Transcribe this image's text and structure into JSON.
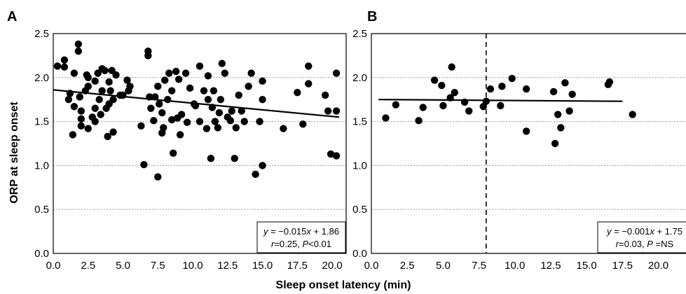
{
  "figure": {
    "ylabel": "ORP at sleep onset",
    "xlabel": "Sleep onset latency (min)"
  },
  "chart_data": [
    {
      "panel": "A",
      "type": "scatter",
      "xlim": [
        0,
        21
      ],
      "ylim": [
        0,
        2.5
      ],
      "xticks": [
        "0.0",
        "2.5",
        "5.0",
        "7.5",
        "10.0",
        "12.5",
        "15.0",
        "17.5",
        "20.0"
      ],
      "yticks": [
        "0.0",
        "0.5",
        "1.0",
        "1.5",
        "2.0",
        "2.5"
      ],
      "grid": "horizontal dotted",
      "marker_color": "#000000",
      "points": [
        [
          0.3,
          2.13
        ],
        [
          0.8,
          2.12
        ],
        [
          0.8,
          2.2
        ],
        [
          1.1,
          1.75
        ],
        [
          1.2,
          1.82
        ],
        [
          1.4,
          1.35
        ],
        [
          1.5,
          2.05
        ],
        [
          1.5,
          1.67
        ],
        [
          1.8,
          2.38
        ],
        [
          1.8,
          2.3
        ],
        [
          1.9,
          1.78
        ],
        [
          2.0,
          1.62
        ],
        [
          2.0,
          1.53
        ],
        [
          2.0,
          1.45
        ],
        [
          2.3,
          1.85
        ],
        [
          2.4,
          2.03
        ],
        [
          2.5,
          2.0
        ],
        [
          2.5,
          1.9
        ],
        [
          2.5,
          1.42
        ],
        [
          2.8,
          1.55
        ],
        [
          3.0,
          1.5
        ],
        [
          3.0,
          1.65
        ],
        [
          3.0,
          1.96
        ],
        [
          3.2,
          2.05
        ],
        [
          3.3,
          1.75
        ],
        [
          3.4,
          1.58
        ],
        [
          3.5,
          2.1
        ],
        [
          3.5,
          1.85
        ],
        [
          3.7,
          2.08
        ],
        [
          3.8,
          1.65
        ],
        [
          3.9,
          1.33
        ],
        [
          4.0,
          1.7
        ],
        [
          4.0,
          1.95
        ],
        [
          4.1,
          1.85
        ],
        [
          4.2,
          2.08
        ],
        [
          4.3,
          1.75
        ],
        [
          4.3,
          1.38
        ],
        [
          4.5,
          2.03
        ],
        [
          4.8,
          1.8
        ],
        [
          5.0,
          1.8
        ],
        [
          5.3,
          1.97
        ],
        [
          5.4,
          1.85
        ],
        [
          5.5,
          1.9
        ],
        [
          6.3,
          1.45
        ],
        [
          6.5,
          1.01
        ],
        [
          6.8,
          2.3
        ],
        [
          6.8,
          2.25
        ],
        [
          6.9,
          1.78
        ],
        [
          7.0,
          1.65
        ],
        [
          7.2,
          1.51
        ],
        [
          7.3,
          1.78
        ],
        [
          7.5,
          0.87
        ],
        [
          7.5,
          1.9
        ],
        [
          7.6,
          1.7
        ],
        [
          7.8,
          1.6
        ],
        [
          7.8,
          1.37
        ],
        [
          7.9,
          1.43
        ],
        [
          8.0,
          1.97
        ],
        [
          8.2,
          1.75
        ],
        [
          8.3,
          2.05
        ],
        [
          8.5,
          1.85
        ],
        [
          8.5,
          1.52
        ],
        [
          8.6,
          1.14
        ],
        [
          8.8,
          2.07
        ],
        [
          8.9,
          1.54
        ],
        [
          9.0,
          1.98
        ],
        [
          9.1,
          1.35
        ],
        [
          9.2,
          1.58
        ],
        [
          9.5,
          2.05
        ],
        [
          9.6,
          1.49
        ],
        [
          9.8,
          1.88
        ],
        [
          10.1,
          1.7
        ],
        [
          10.2,
          1.68
        ],
        [
          10.5,
          1.5
        ],
        [
          10.5,
          2.13
        ],
        [
          10.8,
          1.85
        ],
        [
          11.0,
          1.42
        ],
        [
          11.1,
          2.02
        ],
        [
          11.1,
          1.75
        ],
        [
          11.3,
          1.08
        ],
        [
          11.4,
          1.66
        ],
        [
          11.5,
          1.85
        ],
        [
          11.6,
          1.5
        ],
        [
          11.8,
          1.43
        ],
        [
          11.9,
          1.6
        ],
        [
          12.0,
          1.75
        ],
        [
          12.1,
          2.16
        ],
        [
          12.3,
          2.05
        ],
        [
          12.5,
          1.55
        ],
        [
          12.7,
          1.51
        ],
        [
          12.8,
          1.62
        ],
        [
          13.0,
          1.08
        ],
        [
          13.1,
          1.43
        ],
        [
          13.3,
          1.8
        ],
        [
          13.5,
          1.62
        ],
        [
          13.7,
          1.5
        ],
        [
          14.0,
          1.9
        ],
        [
          14.2,
          2.05
        ],
        [
          14.5,
          0.9
        ],
        [
          14.8,
          1.5
        ],
        [
          15.0,
          1.0
        ],
        [
          15.0,
          1.75
        ],
        [
          15.0,
          1.96
        ],
        [
          16.5,
          1.42
        ],
        [
          17.5,
          1.83
        ],
        [
          17.9,
          1.47
        ],
        [
          18.3,
          1.93
        ],
        [
          18.3,
          2.13
        ],
        [
          19.5,
          1.8
        ],
        [
          19.7,
          1.62
        ],
        [
          19.9,
          1.13
        ],
        [
          20.3,
          2.05
        ],
        [
          20.3,
          1.11
        ],
        [
          20.3,
          1.62
        ]
      ],
      "fit_line": {
        "x": [
          0,
          20.5
        ],
        "y": [
          1.86,
          1.55
        ]
      },
      "annotation": {
        "line1": {
          "a": "y",
          "b": " = −0.015",
          "c": "x",
          "d": " + 1.86"
        },
        "line2": {
          "a": "r",
          "b": "=0.25, ",
          "c": "P",
          "d": "<0.01"
        }
      }
    },
    {
      "panel": "B",
      "type": "scatter",
      "xlim": [
        0,
        21
      ],
      "ylim": [
        0,
        2.5
      ],
      "xticks": [
        "0.0",
        "2.5",
        "5.0",
        "7.5",
        "10.0",
        "12.5",
        "15.0",
        "17.5",
        "20.0"
      ],
      "yticks": [
        "0.0",
        "0.5",
        "1.0",
        "1.5",
        "2.0",
        "2.5"
      ],
      "grid": "horizontal dotted",
      "marker_color": "#000000",
      "vline": 8.0,
      "points": [
        [
          1.0,
          1.54
        ],
        [
          1.7,
          1.69
        ],
        [
          3.3,
          1.51
        ],
        [
          3.6,
          1.66
        ],
        [
          4.4,
          1.97
        ],
        [
          4.9,
          1.91
        ],
        [
          5.0,
          1.68
        ],
        [
          5.5,
          1.77
        ],
        [
          5.6,
          2.12
        ],
        [
          5.8,
          1.83
        ],
        [
          6.5,
          1.72
        ],
        [
          6.8,
          1.62
        ],
        [
          7.8,
          1.67
        ],
        [
          8.0,
          1.73
        ],
        [
          8.3,
          1.87
        ],
        [
          9.0,
          1.68
        ],
        [
          9.1,
          1.9
        ],
        [
          9.8,
          1.99
        ],
        [
          10.8,
          1.87
        ],
        [
          10.8,
          1.39
        ],
        [
          12.7,
          1.84
        ],
        [
          12.8,
          1.25
        ],
        [
          13.0,
          1.58
        ],
        [
          13.2,
          1.43
        ],
        [
          13.5,
          1.94
        ],
        [
          13.8,
          1.62
        ],
        [
          14.0,
          1.81
        ],
        [
          16.5,
          1.92
        ],
        [
          16.6,
          1.95
        ],
        [
          18.2,
          1.58
        ]
      ],
      "fit_line": {
        "x": [
          0.5,
          17.5
        ],
        "y": [
          1.75,
          1.73
        ]
      },
      "annotation": {
        "line1": {
          "a": "y",
          "b": " = −0.001",
          "c": "x",
          "d": " + 1.75"
        },
        "line2": {
          "a": "r",
          "b": "=0.03, ",
          "c": "P",
          "d": " =NS"
        }
      }
    }
  ]
}
